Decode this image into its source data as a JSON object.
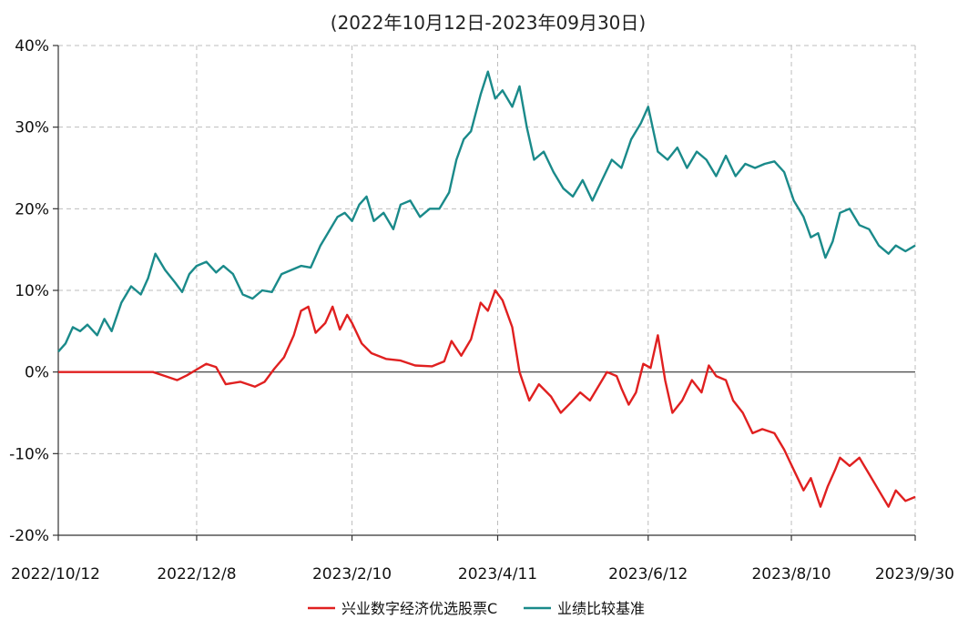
{
  "chart_data": {
    "type": "line",
    "title": "(2022年10月12日-2023年09月30日)",
    "xlabel": "",
    "ylabel": "",
    "x_ticks": [
      "2022/10/12",
      "2022/12/8",
      "2023/2/10",
      "2023/4/11",
      "2023/6/12",
      "2023/8/10",
      "2023/9/30"
    ],
    "y_ticks": [
      "40%",
      "30%",
      "20%",
      "10%",
      "0%",
      "-10%",
      "-20%"
    ],
    "ylim": [
      -20,
      40
    ],
    "y_unit": "%",
    "grid": true,
    "legend_position": "bottom-center",
    "x_start": "2022-10-12",
    "x_end": "2023-09-30",
    "series": [
      {
        "name": "兴业数字经济优选股票C",
        "color": "#e02020",
        "points": [
          [
            "2022-10-12",
            0
          ],
          [
            "2022-10-25",
            0
          ],
          [
            "2022-11-08",
            0
          ],
          [
            "2022-11-20",
            0
          ],
          [
            "2022-11-25",
            -0.5
          ],
          [
            "2022-11-30",
            -1.0
          ],
          [
            "2022-12-04",
            -0.4
          ],
          [
            "2022-12-08",
            0.3
          ],
          [
            "2022-12-12",
            1.0
          ],
          [
            "2022-12-16",
            0.6
          ],
          [
            "2022-12-20",
            -1.5
          ],
          [
            "2022-12-26",
            -1.2
          ],
          [
            "2023-01-01",
            -1.8
          ],
          [
            "2023-01-05",
            -1.2
          ],
          [
            "2023-01-09",
            0.4
          ],
          [
            "2023-01-13",
            1.8
          ],
          [
            "2023-01-17",
            4.5
          ],
          [
            "2023-01-20",
            7.5
          ],
          [
            "2023-01-23",
            8.0
          ],
          [
            "2023-01-26",
            4.8
          ],
          [
            "2023-01-30",
            6.0
          ],
          [
            "2023-02-02",
            8.0
          ],
          [
            "2023-02-05",
            5.2
          ],
          [
            "2023-02-08",
            7.0
          ],
          [
            "2023-02-10",
            6.0
          ],
          [
            "2023-02-14",
            3.5
          ],
          [
            "2023-02-18",
            2.3
          ],
          [
            "2023-02-24",
            1.6
          ],
          [
            "2023-03-02",
            1.4
          ],
          [
            "2023-03-08",
            0.8
          ],
          [
            "2023-03-15",
            0.7
          ],
          [
            "2023-03-20",
            1.3
          ],
          [
            "2023-03-23",
            3.8
          ],
          [
            "2023-03-27",
            2.0
          ],
          [
            "2023-03-31",
            4.0
          ],
          [
            "2023-04-04",
            8.5
          ],
          [
            "2023-04-07",
            7.5
          ],
          [
            "2023-04-10",
            10.0
          ],
          [
            "2023-04-13",
            8.8
          ],
          [
            "2023-04-17",
            5.5
          ],
          [
            "2023-04-20",
            0.0
          ],
          [
            "2023-04-24",
            -3.5
          ],
          [
            "2023-04-28",
            -1.5
          ],
          [
            "2023-05-03",
            -3.0
          ],
          [
            "2023-05-07",
            -5.0
          ],
          [
            "2023-05-11",
            -3.8
          ],
          [
            "2023-05-15",
            -2.5
          ],
          [
            "2023-05-19",
            -3.5
          ],
          [
            "2023-05-23",
            -1.5
          ],
          [
            "2023-05-26",
            0.0
          ],
          [
            "2023-05-30",
            -0.5
          ],
          [
            "2023-06-01",
            -2.0
          ],
          [
            "2023-06-04",
            -4.0
          ],
          [
            "2023-06-07",
            -2.5
          ],
          [
            "2023-06-10",
            1.0
          ],
          [
            "2023-06-13",
            0.5
          ],
          [
            "2023-06-16",
            4.5
          ],
          [
            "2023-06-19",
            -1.0
          ],
          [
            "2023-06-22",
            -5.0
          ],
          [
            "2023-06-26",
            -3.5
          ],
          [
            "2023-06-30",
            -1.0
          ],
          [
            "2023-07-04",
            -2.5
          ],
          [
            "2023-07-07",
            0.8
          ],
          [
            "2023-07-10",
            -0.5
          ],
          [
            "2023-07-14",
            -1.0
          ],
          [
            "2023-07-17",
            -3.5
          ],
          [
            "2023-07-21",
            -5.0
          ],
          [
            "2023-07-25",
            -7.5
          ],
          [
            "2023-07-29",
            -7.0
          ],
          [
            "2023-08-03",
            -7.5
          ],
          [
            "2023-08-07",
            -9.5
          ],
          [
            "2023-08-11",
            -12.0
          ],
          [
            "2023-08-15",
            -14.5
          ],
          [
            "2023-08-18",
            -13.0
          ],
          [
            "2023-08-22",
            -16.5
          ],
          [
            "2023-08-25",
            -14.0
          ],
          [
            "2023-08-28",
            -12.0
          ],
          [
            "2023-08-30",
            -10.5
          ],
          [
            "2023-09-03",
            -11.5
          ],
          [
            "2023-09-07",
            -10.5
          ],
          [
            "2023-09-11",
            -12.5
          ],
          [
            "2023-09-15",
            -14.5
          ],
          [
            "2023-09-19",
            -16.5
          ],
          [
            "2023-09-22",
            -14.5
          ],
          [
            "2023-09-26",
            -15.8
          ],
          [
            "2023-09-30",
            -15.3
          ]
        ]
      },
      {
        "name": "业绩比较基准",
        "color": "#1a8a8a",
        "points": [
          [
            "2022-10-12",
            2.5
          ],
          [
            "2022-10-15",
            3.5
          ],
          [
            "2022-10-18",
            5.5
          ],
          [
            "2022-10-21",
            5.0
          ],
          [
            "2022-10-24",
            5.8
          ],
          [
            "2022-10-28",
            4.5
          ],
          [
            "2022-10-31",
            6.5
          ],
          [
            "2022-11-03",
            5.0
          ],
          [
            "2022-11-07",
            8.5
          ],
          [
            "2022-11-11",
            10.5
          ],
          [
            "2022-11-15",
            9.5
          ],
          [
            "2022-11-18",
            11.5
          ],
          [
            "2022-11-21",
            14.5
          ],
          [
            "2022-11-25",
            12.5
          ],
          [
            "2022-11-29",
            11.0
          ],
          [
            "2022-12-02",
            9.8
          ],
          [
            "2022-12-05",
            12.0
          ],
          [
            "2022-12-08",
            13.0
          ],
          [
            "2022-12-12",
            13.5
          ],
          [
            "2022-12-16",
            12.2
          ],
          [
            "2022-12-19",
            13.0
          ],
          [
            "2022-12-23",
            12.0
          ],
          [
            "2022-12-27",
            9.5
          ],
          [
            "2022-12-31",
            9.0
          ],
          [
            "2023-01-04",
            10.0
          ],
          [
            "2023-01-08",
            9.8
          ],
          [
            "2023-01-12",
            12.0
          ],
          [
            "2023-01-16",
            12.5
          ],
          [
            "2023-01-20",
            13.0
          ],
          [
            "2023-01-24",
            12.8
          ],
          [
            "2023-01-28",
            15.5
          ],
          [
            "2023-02-01",
            17.5
          ],
          [
            "2023-02-04",
            19.0
          ],
          [
            "2023-02-07",
            19.5
          ],
          [
            "2023-02-10",
            18.5
          ],
          [
            "2023-02-13",
            20.5
          ],
          [
            "2023-02-16",
            21.5
          ],
          [
            "2023-02-19",
            18.5
          ],
          [
            "2023-02-23",
            19.5
          ],
          [
            "2023-02-27",
            17.5
          ],
          [
            "2023-03-02",
            20.5
          ],
          [
            "2023-03-06",
            21.0
          ],
          [
            "2023-03-10",
            19.0
          ],
          [
            "2023-03-14",
            20.0
          ],
          [
            "2023-03-18",
            20.0
          ],
          [
            "2023-03-22",
            22.0
          ],
          [
            "2023-03-25",
            26.0
          ],
          [
            "2023-03-28",
            28.5
          ],
          [
            "2023-03-31",
            29.5
          ],
          [
            "2023-04-04",
            34.0
          ],
          [
            "2023-04-07",
            36.8
          ],
          [
            "2023-04-10",
            33.5
          ],
          [
            "2023-04-13",
            34.5
          ],
          [
            "2023-04-17",
            32.5
          ],
          [
            "2023-04-20",
            35.0
          ],
          [
            "2023-04-23",
            30.0
          ],
          [
            "2023-04-26",
            26.0
          ],
          [
            "2023-04-30",
            27.0
          ],
          [
            "2023-05-04",
            24.5
          ],
          [
            "2023-05-08",
            22.5
          ],
          [
            "2023-05-12",
            21.5
          ],
          [
            "2023-05-16",
            23.5
          ],
          [
            "2023-05-20",
            21.0
          ],
          [
            "2023-05-24",
            23.5
          ],
          [
            "2023-05-28",
            26.0
          ],
          [
            "2023-06-01",
            25.0
          ],
          [
            "2023-06-05",
            28.5
          ],
          [
            "2023-06-09",
            30.5
          ],
          [
            "2023-06-12",
            32.5
          ],
          [
            "2023-06-16",
            27.0
          ],
          [
            "2023-06-20",
            26.0
          ],
          [
            "2023-06-24",
            27.5
          ],
          [
            "2023-06-28",
            25.0
          ],
          [
            "2023-07-02",
            27.0
          ],
          [
            "2023-07-06",
            26.0
          ],
          [
            "2023-07-10",
            24.0
          ],
          [
            "2023-07-14",
            26.5
          ],
          [
            "2023-07-18",
            24.0
          ],
          [
            "2023-07-22",
            25.5
          ],
          [
            "2023-07-26",
            25.0
          ],
          [
            "2023-07-30",
            25.5
          ],
          [
            "2023-08-03",
            25.8
          ],
          [
            "2023-08-07",
            24.5
          ],
          [
            "2023-08-11",
            21.0
          ],
          [
            "2023-08-15",
            19.0
          ],
          [
            "2023-08-18",
            16.5
          ],
          [
            "2023-08-21",
            17.0
          ],
          [
            "2023-08-24",
            14.0
          ],
          [
            "2023-08-27",
            16.0
          ],
          [
            "2023-08-30",
            19.5
          ],
          [
            "2023-09-03",
            20.0
          ],
          [
            "2023-09-07",
            18.0
          ],
          [
            "2023-09-11",
            17.5
          ],
          [
            "2023-09-15",
            15.5
          ],
          [
            "2023-09-19",
            14.5
          ],
          [
            "2023-09-22",
            15.5
          ],
          [
            "2023-09-26",
            14.8
          ],
          [
            "2023-09-30",
            15.5
          ]
        ]
      }
    ]
  }
}
